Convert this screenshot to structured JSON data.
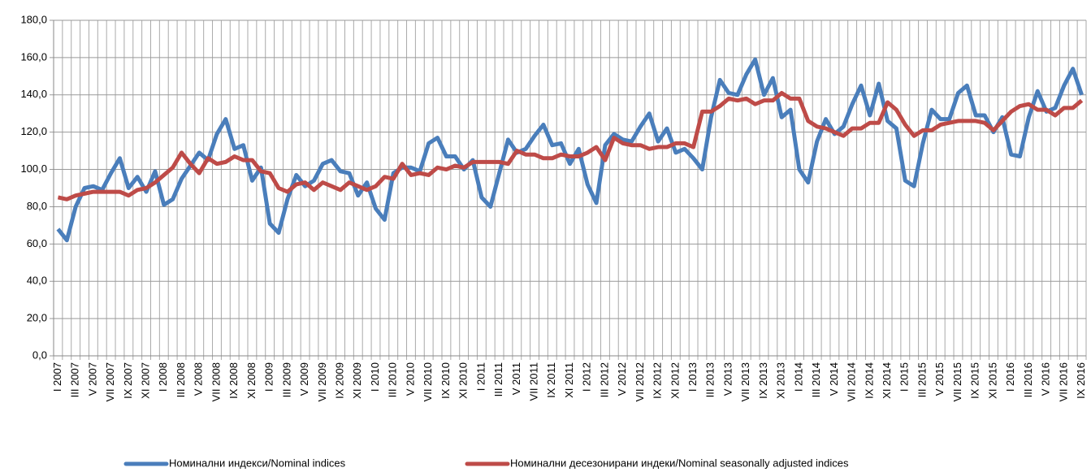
{
  "chart_data": {
    "type": "line",
    "categories": [
      "I 2007",
      null,
      "III 2007",
      null,
      "V 2007",
      null,
      "VII 2007",
      null,
      "IX 2007",
      null,
      "XI 2007",
      null,
      "I 2008",
      null,
      "III 2008",
      null,
      "V 2008",
      null,
      "VII 2008",
      null,
      "IX 2008",
      null,
      "XI 2008",
      null,
      "I 2009",
      null,
      "III 2009",
      null,
      "V 2009",
      null,
      "VII 2009",
      null,
      "IX 2009",
      null,
      "XI 2009",
      null,
      "I 2010",
      null,
      "III 2010",
      null,
      "V 2010",
      null,
      "VII 2010",
      null,
      "IX 2010",
      null,
      "XI 2010",
      null,
      "I 2011",
      null,
      "III 2011",
      null,
      "V 2011",
      null,
      "VII 2011",
      null,
      "IX 2011",
      null,
      "XI 2011",
      null,
      "I 2012",
      null,
      "III 2012",
      null,
      "V 2012",
      null,
      "VII 2012",
      null,
      "IX 2012",
      null,
      "XI 2012",
      null,
      "I 2013",
      null,
      "III 2013",
      null,
      "V 2013",
      null,
      "VII 2013",
      null,
      "IX 2013",
      null,
      "XI 2013",
      null,
      "I 2014",
      null,
      "III 2014",
      null,
      "V 2014",
      null,
      "VII 2014",
      null,
      "IX 2014",
      null,
      "XI 2014",
      null,
      "I 2015",
      null,
      "III 2015",
      null,
      "V 2015",
      null,
      "VII 2015",
      null,
      "IX 2015",
      null,
      "XI 2015",
      null,
      "I 2016",
      null,
      "III 2016",
      null,
      "V 2016",
      null,
      "VII 2016",
      null,
      "IX 2016"
    ],
    "series": [
      {
        "name": "Номинални индекси/Nominal indices",
        "color": "#4a7ebb",
        "values": [
          68,
          62,
          80,
          90,
          91,
          89,
          98,
          106,
          90,
          96,
          88,
          99,
          81,
          84,
          95,
          102,
          109,
          105,
          119,
          127,
          111,
          113,
          94,
          101,
          71,
          66,
          84,
          97,
          91,
          94,
          103,
          105,
          99,
          98,
          86,
          93,
          79,
          73,
          98,
          101,
          101,
          99,
          114,
          117,
          107,
          107,
          100,
          105,
          85,
          80,
          98,
          116,
          109,
          111,
          118,
          124,
          113,
          114,
          103,
          111,
          92,
          82,
          113,
          119,
          116,
          115,
          123,
          130,
          115,
          122,
          109,
          111,
          106,
          100,
          128,
          148,
          141,
          140,
          151,
          159,
          140,
          149,
          128,
          132,
          100,
          93,
          115,
          127,
          119,
          123,
          135,
          145,
          129,
          146,
          126,
          122,
          94,
          91,
          114,
          132,
          127,
          127,
          141,
          145,
          129,
          129,
          120,
          128,
          108,
          107,
          128,
          142,
          131,
          133,
          145,
          154,
          140
        ]
      },
      {
        "name": "Номинални десезонирани индеки/Nominal seasonally adjusted indices",
        "color": "#be4b48",
        "values": [
          85,
          84,
          86,
          87,
          88,
          88,
          88,
          88,
          86,
          89,
          90,
          93,
          97,
          101,
          109,
          103,
          98,
          106,
          103,
          104,
          107,
          105,
          105,
          99,
          98,
          90,
          88,
          92,
          93,
          89,
          93,
          91,
          89,
          93,
          91,
          89,
          91,
          96,
          95,
          103,
          97,
          98,
          97,
          101,
          100,
          102,
          101,
          104,
          104,
          104,
          104,
          103,
          110,
          108,
          108,
          106,
          106,
          108,
          107,
          107,
          109,
          112,
          105,
          117,
          114,
          113,
          113,
          111,
          112,
          112,
          114,
          114,
          112,
          131,
          131,
          134,
          138,
          137,
          138,
          135,
          137,
          137,
          141,
          138,
          138,
          126,
          123,
          122,
          120,
          118,
          122,
          122,
          125,
          125,
          136,
          132,
          124,
          118,
          121,
          121,
          124,
          125,
          126,
          126,
          126,
          125,
          121,
          126,
          131,
          134,
          135,
          132,
          132,
          129,
          133,
          133,
          137
        ]
      }
    ],
    "ylim": [
      0,
      180
    ],
    "yticks": [
      {
        "value": 0,
        "label": "0,0"
      },
      {
        "value": 20,
        "label": "20,0"
      },
      {
        "value": 40,
        "label": "40,0"
      },
      {
        "value": 60,
        "label": "60,0"
      },
      {
        "value": 80,
        "label": "80,0"
      },
      {
        "value": 100,
        "label": "100,0"
      },
      {
        "value": 120,
        "label": "120,0"
      },
      {
        "value": 140,
        "label": "140,0"
      },
      {
        "value": 160,
        "label": "160,0"
      },
      {
        "value": 180,
        "label": "180,0"
      }
    ],
    "grid": true,
    "legend": "bottom"
  }
}
